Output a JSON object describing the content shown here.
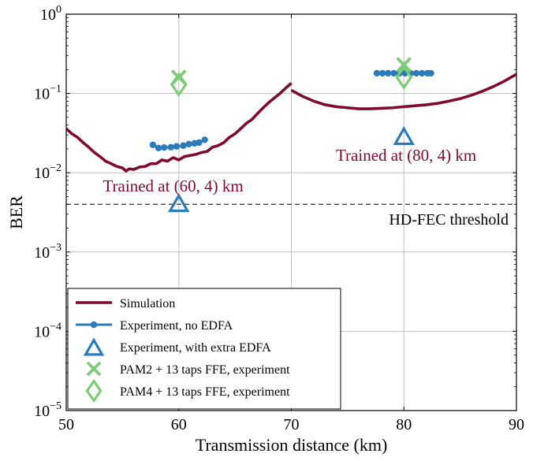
{
  "chart_data": {
    "type": "line",
    "xlabel": "Transmission distance (km)",
    "ylabel": "BER",
    "xlim": [
      50,
      90
    ],
    "ylim": [
      1e-05,
      1
    ],
    "yscale": "log",
    "grid": true,
    "legend_position": "bottom-left",
    "x_ticks": [
      50,
      60,
      70,
      80,
      90
    ],
    "x_tick_labels": [
      "50",
      "60",
      "70",
      "80",
      "90"
    ],
    "y_ticks": [
      1e-05,
      0.0001,
      0.001,
      0.01,
      0.1,
      1
    ],
    "y_tick_labels": [
      {
        "base": "10",
        "exp": "−5"
      },
      {
        "base": "10",
        "exp": "−4"
      },
      {
        "base": "10",
        "exp": "−3"
      },
      {
        "base": "10",
        "exp": "−2"
      },
      {
        "base": "10",
        "exp": "−1"
      },
      {
        "base": "10",
        "exp": "0"
      }
    ],
    "threshold": {
      "y": 0.004,
      "label": "HD-FEC threshold"
    },
    "annotations": [
      {
        "text": "Trained at (60, 4) km",
        "x": 59.5,
        "y": 0.0058,
        "color": "#7f0b2e"
      },
      {
        "text": "Trained at (80, 4) km",
        "x": 80.2,
        "y": 0.0142,
        "color": "#7f0b2e"
      }
    ],
    "series": [
      {
        "name": "Simulation",
        "kind": "line",
        "color": "#7f0b2e",
        "segments": [
          {
            "x": [
              50,
              50.5,
              51,
              51.5,
              52,
              52.5,
              53,
              53.5,
              54,
              54.5,
              55,
              55.3,
              55.6,
              56,
              56.5,
              57,
              57.5,
              58,
              58.5,
              59,
              59.5,
              60,
              60.5,
              61,
              61.5,
              62,
              62.5,
              63,
              63.5,
              64,
              64.5,
              65,
              65.5,
              66,
              66.5,
              67,
              67.5,
              68,
              68.5,
              69,
              69.5,
              70
            ],
            "y": [
              0.036,
              0.031,
              0.028,
              0.024,
              0.021,
              0.018,
              0.016,
              0.014,
              0.013,
              0.012,
              0.0115,
              0.0105,
              0.0112,
              0.011,
              0.0118,
              0.012,
              0.013,
              0.013,
              0.0145,
              0.014,
              0.0155,
              0.0145,
              0.016,
              0.0165,
              0.017,
              0.018,
              0.0185,
              0.021,
              0.022,
              0.024,
              0.028,
              0.031,
              0.036,
              0.042,
              0.047,
              0.056,
              0.066,
              0.077,
              0.088,
              0.1,
              0.117,
              0.135
            ]
          },
          {
            "x": [
              70,
              71,
              72,
              73,
              74,
              75,
              76,
              77,
              78,
              79,
              80,
              81,
              82,
              83,
              84,
              85,
              86,
              87,
              88,
              89,
              90
            ],
            "y": [
              0.11,
              0.092,
              0.08,
              0.072,
              0.068,
              0.066,
              0.064,
              0.064,
              0.065,
              0.066,
              0.068,
              0.07,
              0.072,
              0.075,
              0.08,
              0.086,
              0.095,
              0.107,
              0.123,
              0.145,
              0.175
            ]
          }
        ]
      },
      {
        "name": "Experiment, no EDFA",
        "kind": "line-dots",
        "color": "#2b7bba",
        "segments": [
          {
            "x": [
              57.7,
              58.2,
              58.7,
              59.3,
              59.8,
              60.4,
              60.9,
              61.4,
              61.8,
              62.3
            ],
            "y": [
              0.0225,
              0.0205,
              0.0208,
              0.021,
              0.0215,
              0.022,
              0.023,
              0.0235,
              0.024,
              0.026
            ]
          },
          {
            "x": [
              77.6,
              78.1,
              78.6,
              79.1,
              79.6,
              80.1,
              80.6,
              81.1,
              81.6,
              82.1,
              82.4
            ],
            "y": [
              0.18,
              0.18,
              0.18,
              0.18,
              0.18,
              0.18,
              0.18,
              0.18,
              0.18,
              0.18,
              0.18
            ]
          }
        ]
      },
      {
        "name": "Experiment, with extra EDFA",
        "kind": "triangle",
        "color": "#2b7bba",
        "x": [
          60,
          80
        ],
        "y": [
          0.004,
          0.028
        ]
      },
      {
        "name": "PAM2 + 13 taps FFE, experiment",
        "kind": "cross",
        "color": "#7ccc78",
        "x": [
          60,
          80
        ],
        "y": [
          0.16,
          0.23
        ]
      },
      {
        "name": "PAM4 + 13 taps FFE, experiment",
        "kind": "diamond",
        "color": "#7ccc78",
        "x": [
          60,
          80
        ],
        "y": [
          0.13,
          0.16
        ]
      }
    ]
  }
}
